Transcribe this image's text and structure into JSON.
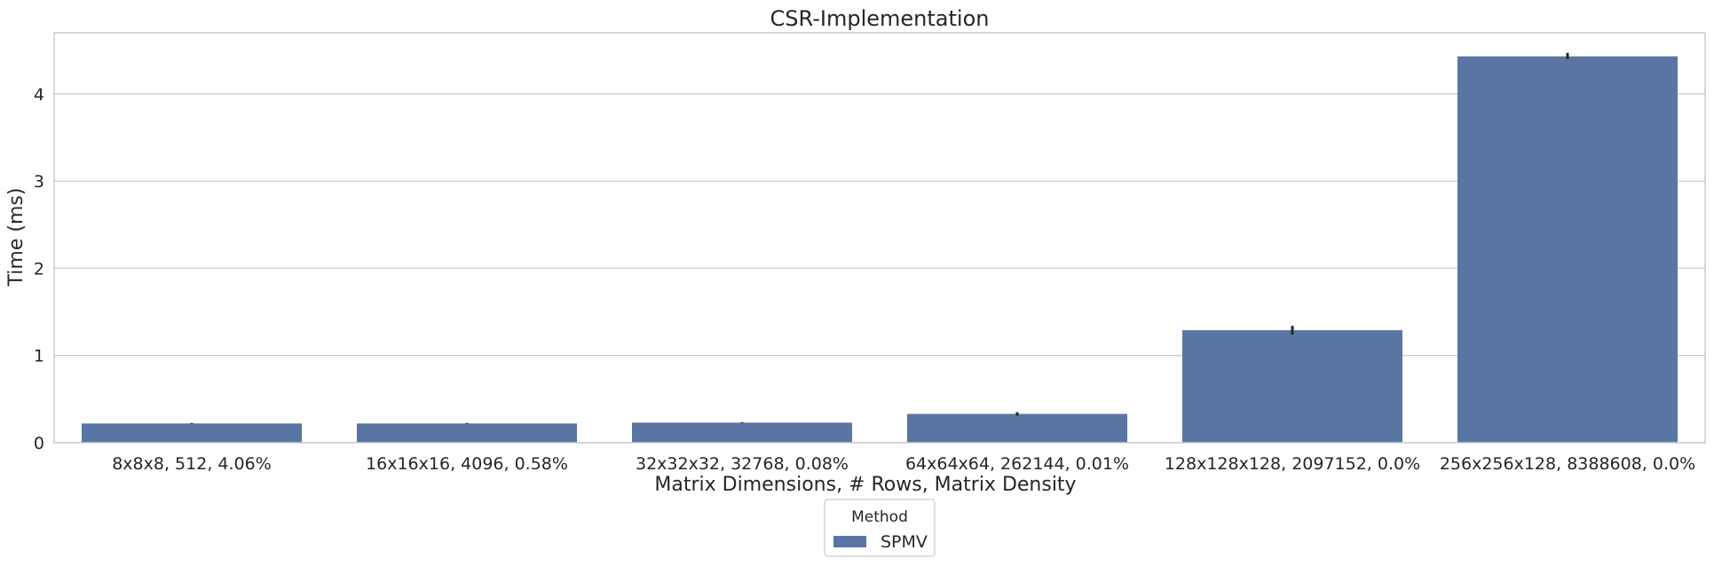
{
  "chart_data": {
    "type": "bar",
    "title": "CSR-Implementation",
    "xlabel": "Matrix Dimensions, # Rows, Matrix Density",
    "ylabel": "Time (ms)",
    "categories": [
      "8x8x8, 512, 4.06%",
      "16x16x16, 4096, 0.58%",
      "32x32x32, 32768, 0.08%",
      "64x64x64, 262144, 0.01%",
      "128x128x128, 2097152, 0.0%",
      "256x256x128, 8388608, 0.0%"
    ],
    "series": [
      {
        "name": "SPMV",
        "values": [
          0.22,
          0.22,
          0.23,
          0.33,
          1.29,
          4.43
        ],
        "error_low": [
          0.215,
          0.215,
          0.225,
          0.31,
          1.24,
          4.4
        ],
        "error_high": [
          0.225,
          0.225,
          0.235,
          0.35,
          1.34,
          4.47
        ]
      }
    ],
    "ylim": [
      0,
      4.7
    ],
    "yticks": [
      "0",
      "1",
      "2",
      "3",
      "4"
    ],
    "grid": "horizontal",
    "legend": {
      "title": "Method",
      "placement": "bottom-center"
    },
    "colors": {
      "bar": "#5975a4",
      "error_bar": "#262626",
      "grid": "#cccccc",
      "frame": "#cccccc",
      "text": "#262626"
    }
  }
}
